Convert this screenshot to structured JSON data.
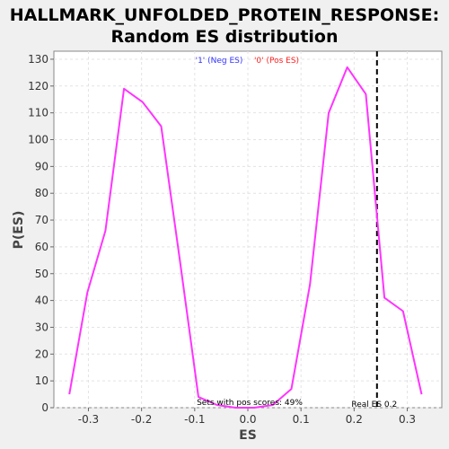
{
  "chart_data": {
    "type": "line",
    "title_line1": "HALLMARK_UNFOLDED_PROTEIN_RESPONSE:",
    "title_line2": "Random ES distribution",
    "xlabel": "ES",
    "ylabel": "P(ES)",
    "xlim": [
      -0.365,
      0.365
    ],
    "ylim": [
      0,
      133
    ],
    "xticks": [
      -0.3,
      -0.2,
      -0.1,
      0.0,
      0.1,
      0.2,
      0.3
    ],
    "xtick_labels": [
      "-0.3",
      "-0.2",
      "-0.1",
      "0.0",
      "0.1",
      "0.2",
      "0.3"
    ],
    "yticks": [
      0,
      10,
      20,
      30,
      40,
      50,
      60,
      70,
      80,
      90,
      100,
      110,
      120,
      130
    ],
    "ytick_labels": [
      "0",
      "10",
      "20",
      "30",
      "40",
      "50",
      "60",
      "70",
      "80",
      "90",
      "100",
      "110",
      "120",
      "130"
    ],
    "grid": true,
    "series": [
      {
        "color": "#ff33ff",
        "x": [
          -0.336,
          -0.302,
          -0.268,
          -0.233,
          -0.198,
          -0.163,
          -0.128,
          -0.093,
          -0.058,
          -0.023,
          0.012,
          0.047,
          0.082,
          0.117,
          0.152,
          0.187,
          0.222,
          0.257,
          0.292,
          0.327
        ],
        "y": [
          5,
          43,
          66,
          119,
          114,
          105,
          55,
          4,
          1,
          0,
          0,
          1,
          7,
          46,
          110,
          127,
          117,
          41,
          36,
          5
        ]
      }
    ],
    "legend": [
      {
        "label": "'1' (Neg ES)",
        "color": "#3333ff"
      },
      {
        "label": "'0' (Pos ES)",
        "color": "#ff2222"
      }
    ],
    "real_es": {
      "x": 0.243,
      "label": "Real ES 0.2"
    },
    "annotation": "Sets with pos scores: 49%"
  }
}
